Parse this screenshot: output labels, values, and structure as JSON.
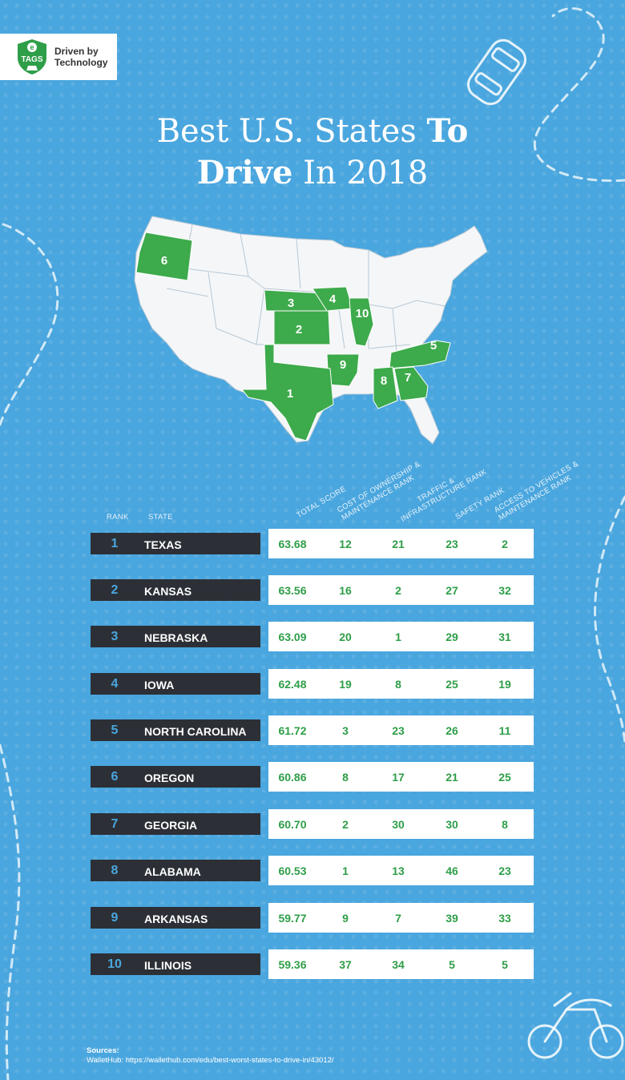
{
  "logo": {
    "badge_text": "TAGS",
    "tagline_1": "Driven by",
    "tagline_2": "Technology"
  },
  "title": {
    "line1_normal": "Best U.S. States ",
    "line1_bold": "To",
    "line2_bold": "Drive",
    "line2_normal": " In 2018"
  },
  "map": {
    "highlight_color": "#3daa4b",
    "base_color": "#f4f6f8",
    "labels": [
      {
        "state": "Oregon",
        "rank": "6"
      },
      {
        "state": "Nebraska",
        "rank": "3"
      },
      {
        "state": "Iowa",
        "rank": "4"
      },
      {
        "state": "Illinois",
        "rank": "10"
      },
      {
        "state": "Kansas",
        "rank": "2"
      },
      {
        "state": "North Carolina",
        "rank": "5"
      },
      {
        "state": "Arkansas",
        "rank": "9"
      },
      {
        "state": "Alabama",
        "rank": "8"
      },
      {
        "state": "Georgia",
        "rank": "7"
      },
      {
        "state": "Texas",
        "rank": "1"
      }
    ]
  },
  "table": {
    "headers": {
      "rank": "RANK",
      "state": "STATE",
      "total": "TOTAL SCORE",
      "cost_1": "COST OF OWNERSHIP &",
      "cost_2": "MAINTENANCE RANK",
      "traffic_1": "TRAFFIC &",
      "traffic_2": "INFRASTRUCTURE RANK",
      "safety": "SAFETY RANK",
      "access_1": "ACCESS TO VEHICLES &",
      "access_2": "MAINTENANCE RANK"
    },
    "colors": {
      "rank_text": "#4aa6de",
      "value_text": "#2e9e48",
      "dark": "#2c3036"
    }
  },
  "chart_data": {
    "type": "table",
    "title": "Best U.S. States To Drive In 2018",
    "columns": [
      "RANK",
      "STATE",
      "TOTAL SCORE",
      "COST OF OWNERSHIP & MAINTENANCE RANK",
      "TRAFFIC & INFRASTRUCTURE RANK",
      "SAFETY RANK",
      "ACCESS TO VEHICLES & MAINTENANCE RANK"
    ],
    "rows": [
      {
        "rank": "1",
        "state": "TEXAS",
        "total": "63.68",
        "cost": "12",
        "traffic": "21",
        "safety": "23",
        "access": "2"
      },
      {
        "rank": "2",
        "state": "KANSAS",
        "total": "63.56",
        "cost": "16",
        "traffic": "2",
        "safety": "27",
        "access": "32"
      },
      {
        "rank": "3",
        "state": "NEBRASKA",
        "total": "63.09",
        "cost": "20",
        "traffic": "1",
        "safety": "29",
        "access": "31"
      },
      {
        "rank": "4",
        "state": "IOWA",
        "total": "62.48",
        "cost": "19",
        "traffic": "8",
        "safety": "25",
        "access": "19"
      },
      {
        "rank": "5",
        "state": "NORTH CAROLINA",
        "total": "61.72",
        "cost": "3",
        "traffic": "23",
        "safety": "26",
        "access": "11"
      },
      {
        "rank": "6",
        "state": "OREGON",
        "total": "60.86",
        "cost": "8",
        "traffic": "17",
        "safety": "21",
        "access": "25"
      },
      {
        "rank": "7",
        "state": "GEORGIA",
        "total": "60.70",
        "cost": "2",
        "traffic": "30",
        "safety": "30",
        "access": "8"
      },
      {
        "rank": "8",
        "state": "ALABAMA",
        "total": "60.53",
        "cost": "1",
        "traffic": "13",
        "safety": "46",
        "access": "23"
      },
      {
        "rank": "9",
        "state": "ARKANSAS",
        "total": "59.77",
        "cost": "9",
        "traffic": "7",
        "safety": "39",
        "access": "33"
      },
      {
        "rank": "10",
        "state": "ILLINOIS",
        "total": "59.36",
        "cost": "37",
        "traffic": "34",
        "safety": "5",
        "access": "5"
      }
    ]
  },
  "sources": {
    "label": "Sources:",
    "text": "WalletHub: https://wallethub.com/edu/best-worst-states-to-drive-in/43012/"
  }
}
